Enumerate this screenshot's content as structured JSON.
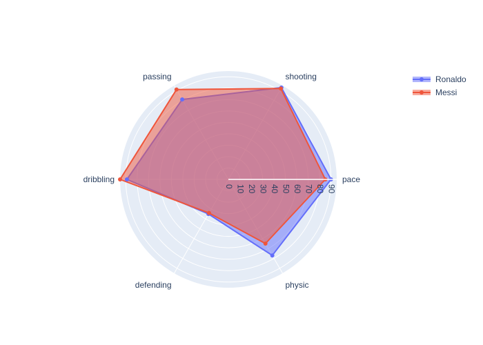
{
  "chart_data": {
    "type": "radar",
    "title": "",
    "categories": [
      "pace",
      "shooting",
      "passing",
      "dribbling",
      "defending",
      "physic"
    ],
    "radial_ticks": [
      "0",
      "10",
      "20",
      "30",
      "40",
      "50",
      "60",
      "70",
      "80",
      "90"
    ],
    "radial_range": [
      0,
      95
    ],
    "grid": true,
    "legend_position": "top-right",
    "series": [
      {
        "name": "Ronaldo",
        "values": [
          90,
          93,
          81,
          89,
          35,
          77
        ],
        "color": "#636efa"
      },
      {
        "name": "Messi",
        "values": [
          85,
          92,
          91,
          95,
          34,
          65
        ],
        "color": "#ef553b"
      }
    ]
  },
  "colors": {
    "polar_background": "#e5ecf6",
    "grid_line": "#ffffff",
    "text": "#2a3f5f"
  }
}
